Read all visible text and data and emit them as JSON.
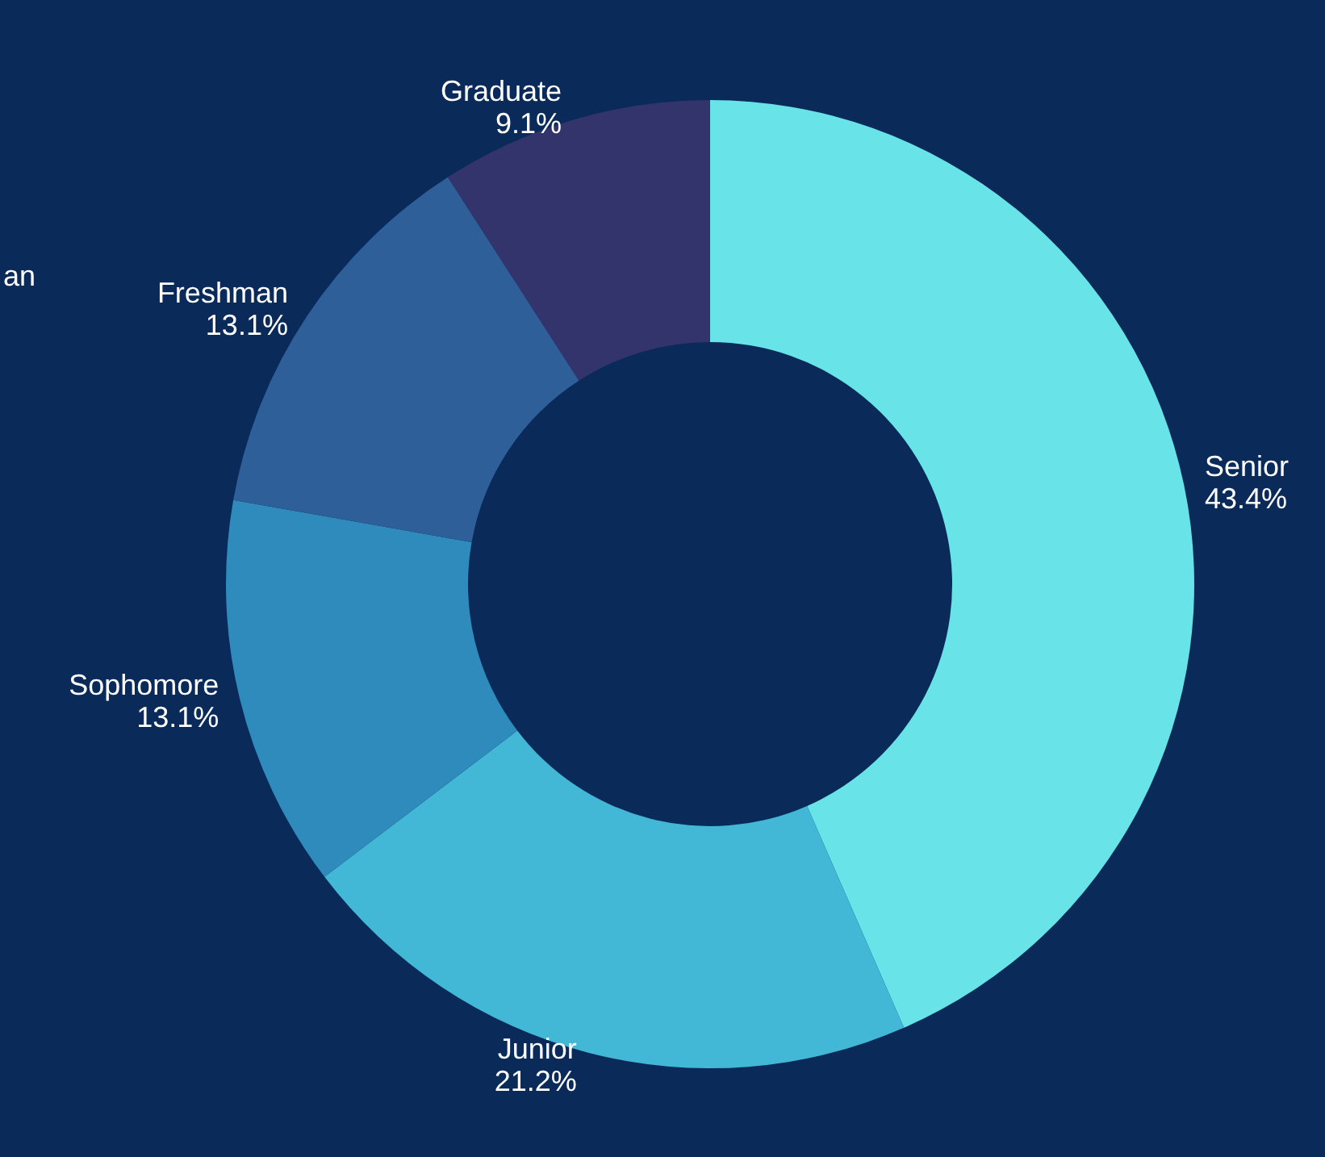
{
  "chart_data": {
    "type": "donut",
    "categories": [
      "Senior",
      "Junior",
      "Sophomore",
      "Freshman",
      "Graduate"
    ],
    "values": [
      43.4,
      21.2,
      13.1,
      13.1,
      9.1
    ],
    "value_labels": [
      "43.4%",
      "21.2%",
      "13.1%",
      "13.1%",
      "9.1%"
    ],
    "colors": [
      "#68e4e8",
      "#42b8d6",
      "#2e8bbb",
      "#2e5f99",
      "#34346c"
    ],
    "annotations": [
      "an"
    ],
    "legend": false
  }
}
